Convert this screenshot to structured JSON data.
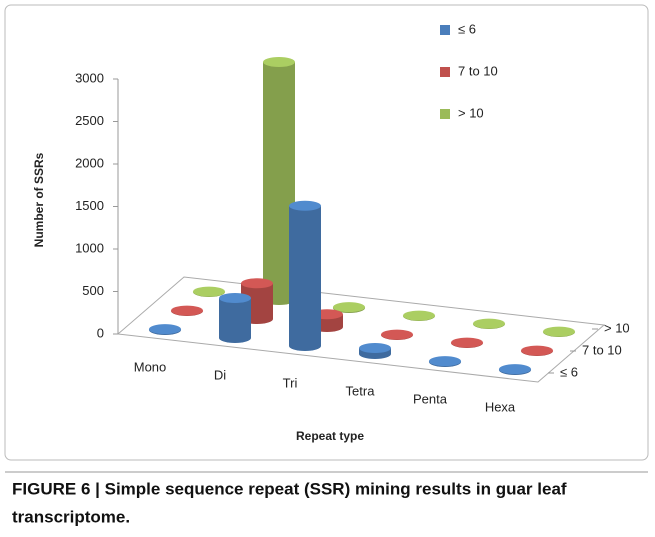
{
  "chart_data": {
    "type": "bar3d",
    "y_label": "Number of SSRs",
    "x_label": "Repeat type",
    "categories": [
      "Mono",
      "Di",
      "Tri",
      "Tetra",
      "Penta",
      "Hexa"
    ],
    "series": [
      {
        "name": "≤ 6",
        "color": "#4a7ebb",
        "values": [
          10,
          470,
          1650,
          70,
          10,
          10
        ]
      },
      {
        "name": "7 to 10",
        "color": "#c0504d",
        "values": [
          5,
          420,
          150,
          5,
          5,
          5
        ]
      },
      {
        "name": "> 10",
        "color": "#9bbb59",
        "values": [
          5,
          2800,
          10,
          5,
          5,
          5
        ]
      }
    ],
    "ylim": [
      0,
      3000
    ],
    "yticks": [
      0,
      500,
      1000,
      1500,
      2000,
      2500,
      3000
    ]
  },
  "caption": {
    "line1": "FIGURE 6 | Simple sequence repeat (SSR) mining results in guar leaf",
    "line2": "transcriptome."
  }
}
